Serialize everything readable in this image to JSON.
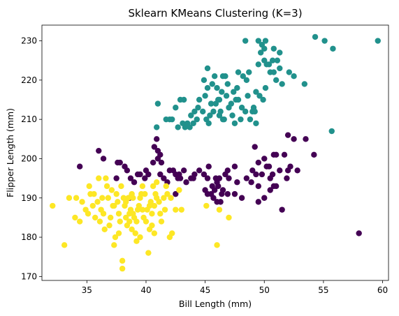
{
  "chart_data": {
    "type": "scatter",
    "title": "Sklearn KMeans Clustering (K=3)",
    "xlabel": "Bill Length (mm)",
    "ylabel": "Flipper Length (mm)",
    "xlim": [
      31.2,
      60.5
    ],
    "ylim": [
      169,
      234
    ],
    "xticks": [
      35,
      40,
      45,
      50,
      55,
      60
    ],
    "yticks": [
      170,
      180,
      190,
      200,
      210,
      220,
      230
    ],
    "grid": false,
    "marker": "circle",
    "series": [
      {
        "color": "#440154",
        "points": [
          [
            36.0,
            202
          ],
          [
            34.4,
            198
          ],
          [
            37.6,
            199
          ],
          [
            37.8,
            199
          ],
          [
            38.2,
            198
          ],
          [
            38.4,
            197
          ],
          [
            38.7,
            195
          ],
          [
            39.0,
            194
          ],
          [
            39.3,
            196
          ],
          [
            39.5,
            196
          ],
          [
            39.9,
            195
          ],
          [
            40.0,
            197
          ],
          [
            40.2,
            196
          ],
          [
            40.6,
            199
          ],
          [
            40.7,
            203
          ],
          [
            40.9,
            205
          ],
          [
            41.0,
            202
          ],
          [
            41.0,
            200
          ],
          [
            41.2,
            196
          ],
          [
            41.5,
            195
          ],
          [
            41.8,
            194
          ],
          [
            42.0,
            197
          ],
          [
            42.3,
            197
          ],
          [
            42.5,
            196
          ],
          [
            42.7,
            195
          ],
          [
            42.9,
            195
          ],
          [
            43.2,
            197
          ],
          [
            43.4,
            194
          ],
          [
            43.8,
            195
          ],
          [
            44.1,
            196
          ],
          [
            44.5,
            197
          ],
          [
            44.9,
            196
          ],
          [
            45.2,
            195
          ],
          [
            45.2,
            191
          ],
          [
            45.5,
            191
          ],
          [
            45.6,
            193
          ],
          [
            45.7,
            190
          ],
          [
            45.8,
            192
          ],
          [
            45.9,
            195
          ],
          [
            46.0,
            194
          ],
          [
            46.1,
            193
          ],
          [
            46.2,
            195
          ],
          [
            46.4,
            191
          ],
          [
            46.5,
            192
          ],
          [
            46.7,
            196
          ],
          [
            46.9,
            191
          ],
          [
            47.0,
            195
          ],
          [
            47.5,
            191
          ],
          [
            48.5,
            195
          ],
          [
            49.0,
            197
          ],
          [
            49.2,
            203
          ],
          [
            49.5,
            193
          ],
          [
            49.8,
            196
          ],
          [
            50.0,
            200
          ],
          [
            50.2,
            198
          ],
          [
            50.4,
            198
          ],
          [
            50.5,
            195
          ],
          [
            50.8,
            201
          ],
          [
            51.0,
            201
          ],
          [
            51.3,
            197
          ],
          [
            51.7,
            201
          ],
          [
            52.0,
            197
          ],
          [
            52.2,
            198
          ],
          [
            52.5,
            205
          ],
          [
            52.8,
            197
          ],
          [
            53.5,
            205
          ],
          [
            54.2,
            201
          ],
          [
            58.0,
            181
          ],
          [
            41.2,
            201
          ],
          [
            37.5,
            195
          ],
          [
            41.3,
            199
          ],
          [
            42.8,
            196
          ],
          [
            44.0,
            195
          ],
          [
            45.3,
            198
          ],
          [
            46.9,
            197
          ],
          [
            47.5,
            198
          ],
          [
            48.1,
            190
          ],
          [
            49.3,
            196
          ],
          [
            50.0,
            190
          ],
          [
            50.5,
            192
          ],
          [
            51.0,
            193
          ],
          [
            51.5,
            187
          ],
          [
            52.0,
            206
          ],
          [
            38.6,
            190
          ],
          [
            42.5,
            191
          ],
          [
            46.3,
            189
          ],
          [
            49.5,
            189
          ],
          [
            50.7,
            196
          ],
          [
            51.9,
            195
          ],
          [
            36.4,
            200
          ],
          [
            45.0,
            192
          ],
          [
            46.0,
            189
          ],
          [
            47.7,
            194
          ],
          [
            48.9,
            194
          ],
          [
            49.5,
            199
          ],
          [
            50.8,
            193
          ]
        ]
      },
      {
        "color": "#21918c",
        "points": [
          [
            40.9,
            208
          ],
          [
            41.0,
            214
          ],
          [
            41.7,
            210
          ],
          [
            42.0,
            210
          ],
          [
            42.5,
            213
          ],
          [
            42.9,
            215
          ],
          [
            43.1,
            209
          ],
          [
            43.3,
            208
          ],
          [
            43.5,
            209
          ],
          [
            43.7,
            208
          ],
          [
            43.8,
            211
          ],
          [
            44.0,
            209
          ],
          [
            44.3,
            210
          ],
          [
            44.5,
            215
          ],
          [
            44.8,
            212
          ],
          [
            45.0,
            216
          ],
          [
            45.1,
            210
          ],
          [
            45.2,
            218
          ],
          [
            45.2,
            223
          ],
          [
            45.4,
            211
          ],
          [
            45.5,
            214
          ],
          [
            45.6,
            219
          ],
          [
            45.7,
            212
          ],
          [
            45.9,
            214
          ],
          [
            46.1,
            215
          ],
          [
            46.2,
            215
          ],
          [
            46.3,
            212
          ],
          [
            46.4,
            217
          ],
          [
            46.5,
            210
          ],
          [
            46.6,
            210
          ],
          [
            46.8,
            216
          ],
          [
            46.9,
            219
          ],
          [
            47.0,
            213
          ],
          [
            47.2,
            214
          ],
          [
            47.4,
            217
          ],
          [
            47.6,
            215
          ],
          [
            47.8,
            215
          ],
          [
            48.0,
            210
          ],
          [
            48.2,
            221
          ],
          [
            48.4,
            212
          ],
          [
            48.5,
            220
          ],
          [
            48.7,
            222
          ],
          [
            48.8,
            210
          ],
          [
            49.0,
            212
          ],
          [
            49.1,
            213
          ],
          [
            49.2,
            212
          ],
          [
            49.3,
            217
          ],
          [
            49.5,
            224
          ],
          [
            49.6,
            216
          ],
          [
            49.7,
            227
          ],
          [
            49.8,
            229
          ],
          [
            50.0,
            225
          ],
          [
            50.1,
            230
          ],
          [
            50.2,
            224
          ],
          [
            50.4,
            224
          ],
          [
            50.5,
            222
          ],
          [
            50.7,
            225
          ],
          [
            50.8,
            228
          ],
          [
            51.0,
            220
          ],
          [
            51.1,
            225
          ],
          [
            51.3,
            223
          ],
          [
            51.5,
            219
          ],
          [
            52.1,
            222
          ],
          [
            52.5,
            221
          ],
          [
            53.4,
            219
          ],
          [
            54.3,
            231
          ],
          [
            55.1,
            230
          ],
          [
            55.8,
            228
          ],
          [
            55.7,
            207
          ],
          [
            59.6,
            230
          ],
          [
            48.4,
            230
          ],
          [
            49.5,
            230
          ],
          [
            50.0,
            228
          ],
          [
            46.5,
            221
          ],
          [
            46.0,
            218
          ],
          [
            44.9,
            220
          ],
          [
            47.3,
            211
          ],
          [
            48.1,
            213
          ],
          [
            43.2,
            215
          ],
          [
            42.7,
            208
          ],
          [
            44.1,
            212
          ],
          [
            46.7,
            221
          ],
          [
            47.5,
            209
          ],
          [
            49.9,
            215
          ],
          [
            50.1,
            218
          ],
          [
            48.6,
            216
          ],
          [
            47.7,
            218
          ],
          [
            45.8,
            221
          ],
          [
            44.4,
            213
          ],
          [
            49.3,
            209
          ],
          [
            50.8,
            222
          ],
          [
            51.3,
            227
          ],
          [
            46.2,
            211
          ],
          [
            45.3,
            209
          ],
          [
            42.2,
            210
          ],
          [
            47.8,
            222
          ]
        ]
      },
      {
        "color": "#fde725",
        "points": [
          [
            32.1,
            188
          ],
          [
            33.1,
            178
          ],
          [
            33.5,
            190
          ],
          [
            34.0,
            185
          ],
          [
            34.4,
            184
          ],
          [
            34.6,
            189
          ],
          [
            34.9,
            187
          ],
          [
            35.2,
            193
          ],
          [
            35.3,
            191
          ],
          [
            35.5,
            188
          ],
          [
            35.7,
            185
          ],
          [
            35.9,
            189
          ],
          [
            36.0,
            195
          ],
          [
            36.2,
            187
          ],
          [
            36.4,
            186
          ],
          [
            36.5,
            182
          ],
          [
            36.6,
            195
          ],
          [
            36.7,
            193
          ],
          [
            36.8,
            190
          ],
          [
            37.0,
            185
          ],
          [
            37.2,
            188
          ],
          [
            37.3,
            178
          ],
          [
            37.5,
            191
          ],
          [
            37.6,
            189
          ],
          [
            37.7,
            181
          ],
          [
            37.8,
            184
          ],
          [
            37.9,
            193
          ],
          [
            38.0,
            174
          ],
          [
            38.0,
            172
          ],
          [
            38.1,
            190
          ],
          [
            38.2,
            188
          ],
          [
            38.3,
            185
          ],
          [
            38.4,
            183
          ],
          [
            38.5,
            190
          ],
          [
            38.6,
            186
          ],
          [
            38.7,
            187
          ],
          [
            38.8,
            191
          ],
          [
            38.9,
            190
          ],
          [
            39.0,
            185
          ],
          [
            39.1,
            181
          ],
          [
            39.2,
            179
          ],
          [
            39.3,
            187
          ],
          [
            39.4,
            188
          ],
          [
            39.5,
            190
          ],
          [
            39.6,
            191
          ],
          [
            39.7,
            193
          ],
          [
            39.8,
            185
          ],
          [
            40.0,
            184
          ],
          [
            40.1,
            187
          ],
          [
            40.2,
            176
          ],
          [
            40.3,
            182
          ],
          [
            40.4,
            189
          ],
          [
            40.5,
            186
          ],
          [
            40.6,
            193
          ],
          [
            40.7,
            188
          ],
          [
            40.8,
            191
          ],
          [
            40.9,
            194
          ],
          [
            41.1,
            189
          ],
          [
            41.3,
            184
          ],
          [
            41.5,
            190
          ],
          [
            41.6,
            187
          ],
          [
            41.8,
            191
          ],
          [
            42.0,
            180
          ],
          [
            42.2,
            181
          ],
          [
            42.5,
            187
          ],
          [
            43.0,
            187
          ],
          [
            45.1,
            188
          ],
          [
            46.0,
            178
          ],
          [
            46.2,
            187
          ],
          [
            47.0,
            185
          ],
          [
            34.1,
            190
          ],
          [
            35.6,
            191
          ],
          [
            36.3,
            190
          ],
          [
            37.1,
            192
          ],
          [
            38.9,
            186
          ],
          [
            39.7,
            187
          ],
          [
            40.9,
            190
          ],
          [
            42.8,
            192
          ],
          [
            37.4,
            180
          ],
          [
            39.5,
            180
          ],
          [
            40.7,
            181
          ],
          [
            36.9,
            183
          ],
          [
            38.6,
            184
          ],
          [
            41.2,
            186
          ],
          [
            35.1,
            186
          ],
          [
            37.7,
            186
          ],
          [
            39.2,
            184
          ],
          [
            40.3,
            188
          ],
          [
            41.7,
            193
          ],
          [
            42.1,
            190
          ],
          [
            36.1,
            184
          ],
          [
            38.8,
            182
          ],
          [
            40.5,
            183
          ],
          [
            37.3,
            188
          ],
          [
            39.9,
            191
          ],
          [
            38.3,
            189
          ]
        ]
      }
    ]
  }
}
